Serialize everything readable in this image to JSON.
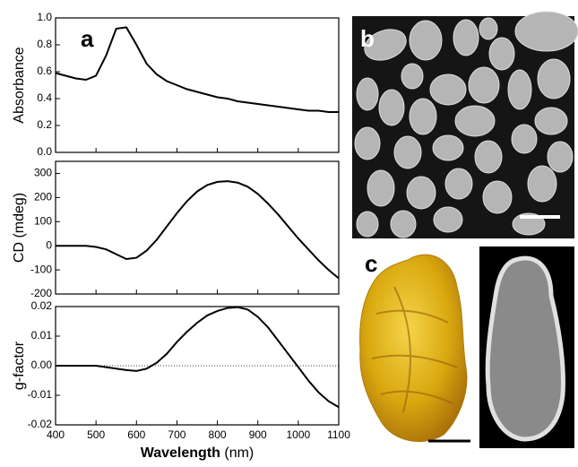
{
  "chart_data": [
    {
      "type": "line",
      "panel_label": "a",
      "y_label": "Absorbance",
      "color": "#000000",
      "x": [
        400,
        425,
        450,
        475,
        500,
        525,
        550,
        575,
        600,
        625,
        650,
        675,
        700,
        725,
        750,
        775,
        800,
        825,
        850,
        875,
        900,
        925,
        950,
        975,
        1000,
        1025,
        1050,
        1075,
        1100
      ],
      "values": [
        0.59,
        0.57,
        0.55,
        0.54,
        0.57,
        0.72,
        0.92,
        0.93,
        0.8,
        0.66,
        0.58,
        0.53,
        0.5,
        0.47,
        0.45,
        0.43,
        0.41,
        0.4,
        0.38,
        0.37,
        0.36,
        0.35,
        0.34,
        0.33,
        0.32,
        0.31,
        0.31,
        0.3,
        0.3
      ],
      "xlim": [
        400,
        1100
      ],
      "xticks": [
        400,
        500,
        600,
        700,
        800,
        900,
        1000,
        1100
      ],
      "ylim": [
        0,
        1.0
      ],
      "yticks": [
        {
          "value": 0,
          "label": "0.0"
        },
        0.2,
        0.4,
        0.6,
        0.8,
        {
          "value": 1.0,
          "label": "1.0"
        }
      ]
    },
    {
      "type": "line",
      "y_label": "CD (mdeg)",
      "color": "#000000",
      "x": [
        400,
        425,
        450,
        475,
        500,
        525,
        550,
        575,
        600,
        625,
        650,
        675,
        700,
        725,
        750,
        775,
        800,
        825,
        850,
        875,
        900,
        925,
        950,
        975,
        1000,
        1025,
        1050,
        1075,
        1100
      ],
      "values": [
        0,
        0,
        0,
        0,
        -5,
        -15,
        -35,
        -55,
        -50,
        -20,
        25,
        80,
        135,
        185,
        225,
        252,
        265,
        268,
        262,
        245,
        215,
        175,
        130,
        80,
        30,
        -15,
        -60,
        -100,
        -135
      ],
      "xlim": [
        400,
        1100
      ],
      "xticks": [
        400,
        500,
        600,
        700,
        800,
        900,
        1000,
        1100
      ],
      "ylim": [
        -200,
        350
      ],
      "yticks": [
        -200,
        -100,
        0,
        100,
        200,
        300
      ]
    },
    {
      "type": "line",
      "y_label": "g-factor",
      "color": "#000000",
      "zero_line": true,
      "x_label": "Wavelength",
      "x_unit": "(nm)",
      "show_x_tick_labels": true,
      "x": [
        400,
        425,
        450,
        475,
        500,
        525,
        550,
        575,
        600,
        625,
        650,
        675,
        700,
        725,
        750,
        775,
        800,
        825,
        850,
        875,
        900,
        925,
        950,
        975,
        1000,
        1025,
        1050,
        1075,
        1100
      ],
      "values": [
        0,
        0,
        0,
        0,
        0,
        -0.0005,
        -0.001,
        -0.0015,
        -0.0018,
        -0.001,
        0.001,
        0.004,
        0.008,
        0.0115,
        0.0145,
        0.017,
        0.0185,
        0.0195,
        0.0198,
        0.019,
        0.0165,
        0.013,
        0.0085,
        0.004,
        -0.0005,
        -0.005,
        -0.009,
        -0.012,
        -0.014
      ],
      "xlim": [
        400,
        1100
      ],
      "xticks": [
        400,
        500,
        600,
        700,
        800,
        900,
        1000,
        1100
      ],
      "ylim": [
        -0.02,
        0.02
      ],
      "yticks": [
        -0.02,
        -0.01,
        {
          "value": 0,
          "label": "0.00"
        },
        0.01,
        0.02
      ]
    }
  ],
  "images": [
    {
      "label": "b"
    },
    {
      "label": "c"
    }
  ]
}
